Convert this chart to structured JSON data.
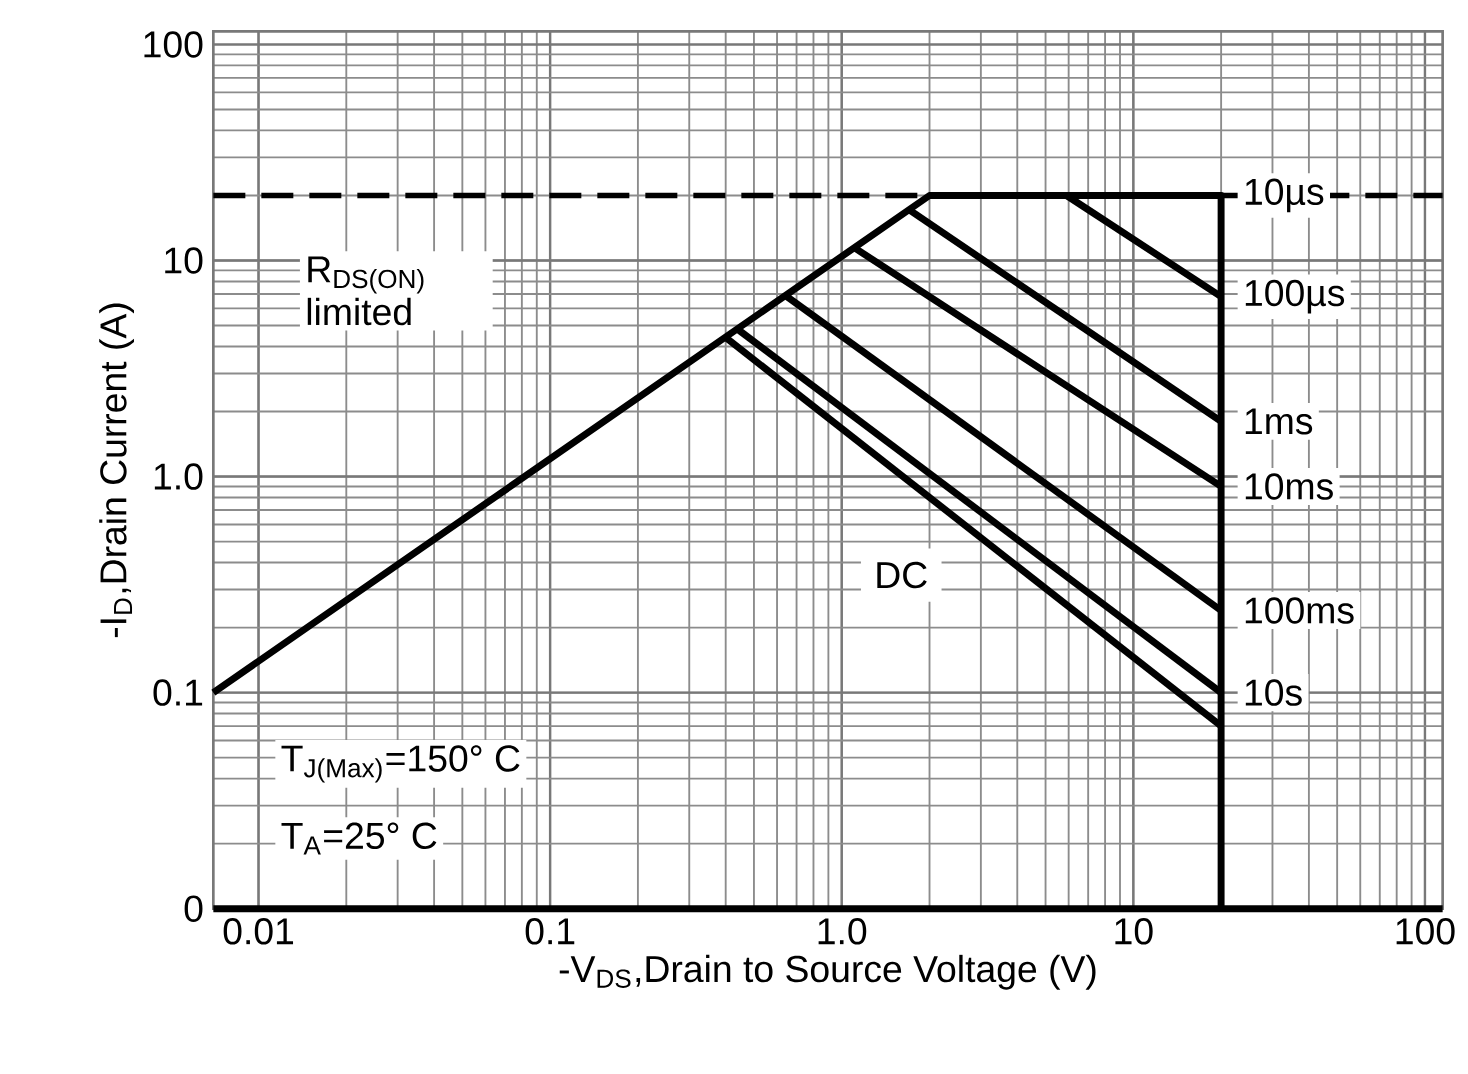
{
  "chart_data": {
    "type": "line",
    "xlabel": "-V$_{DS}$,Drain to Source Voltage (V)",
    "ylabel": "-I$_{D}$,Drain Current (A)",
    "log": "xy",
    "grid": true,
    "marker": "none",
    "line_style": "solid",
    "xlim": [
      0.007,
      115
    ],
    "ylim": [
      0.01,
      115
    ],
    "xticks": [
      0.01,
      0.1,
      {
        "value": 1,
        "label": "1.0"
      },
      10,
      100
    ],
    "yticks": [
      {
        "value": 0.01,
        "label": "0"
      },
      0.1,
      {
        "value": 1,
        "label": "1.0"
      },
      10,
      100
    ],
    "series": [
      {
        "name": "10µs",
        "color": "#000000",
        "x": [
          0.007,
          2,
          20,
          20
        ],
        "values": [
          0.1,
          20,
          20,
          0.01
        ]
      },
      {
        "name": "100µs",
        "color": "#000000",
        "x": [
          5.9,
          20
        ],
        "values": [
          20,
          6.8
        ]
      },
      {
        "name": "1ms",
        "color": "#000000",
        "x": [
          1.7,
          20
        ],
        "values": [
          17.2,
          1.8
        ]
      },
      {
        "name": "10ms",
        "color": "#000000",
        "x": [
          1.1,
          20
        ],
        "values": [
          11.5,
          0.9
        ]
      },
      {
        "name": "100ms",
        "color": "#000000",
        "x": [
          0.64,
          20
        ],
        "values": [
          6.9,
          0.24
        ]
      },
      {
        "name": "10s",
        "color": "#000000",
        "x": [
          0.44,
          20
        ],
        "values": [
          4.8,
          0.1
        ]
      },
      {
        "color": "#000000",
        "x": [
          0.4,
          20
        ],
        "values": [
          4.4,
          0.07
        ]
      }
    ],
    "ref_lines": [
      {
        "axis": "y",
        "value": 20,
        "line_style": "dashed",
        "color": "#000000"
      }
    ],
    "annotations": [
      "R$_{DS(ON)}$ limited",
      "T$_{J(Max)}$=150° C",
      "T$_{A}$=25° C",
      {
        "text": "DC",
        "x": 1.6,
        "y": 0.35
      }
    ]
  }
}
